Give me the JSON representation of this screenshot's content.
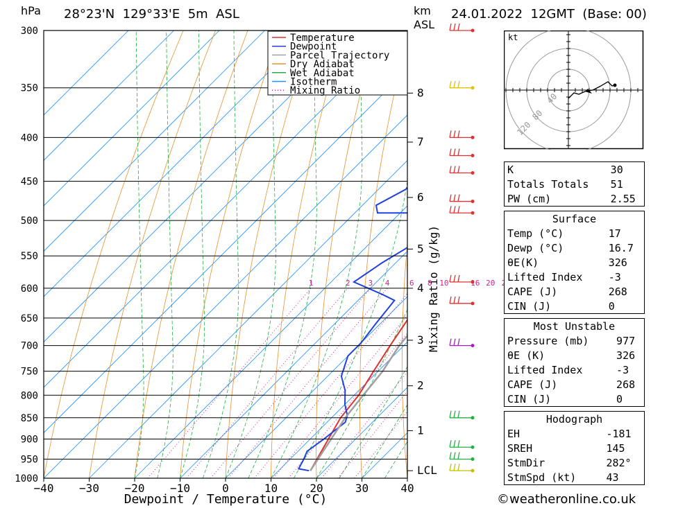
{
  "header": {
    "pressure_unit": "hPa",
    "location": "28°23'N  129°33'E  5m  ASL",
    "height_unit": "km",
    "height_unit2": "ASL",
    "datetime": "24.01.2022  12GMT  (Base: 00)"
  },
  "chart_data": {
    "type": "skew-t",
    "xlabel": "Dewpoint / Temperature (°C)",
    "ylabel_right": "Mixing Ratio (g/kg)",
    "x_ticks": [
      "-40",
      "-30",
      "-20",
      "-10",
      "0",
      "10",
      "20",
      "30",
      "40"
    ],
    "x_range": [
      -40,
      40
    ],
    "pressure_levels": [
      300,
      350,
      400,
      450,
      500,
      550,
      600,
      650,
      700,
      750,
      800,
      850,
      900,
      950,
      1000
    ],
    "height_ticks": [
      {
        "km": "8",
        "p": 355
      },
      {
        "km": "7",
        "p": 405
      },
      {
        "km": "6",
        "p": 470
      },
      {
        "km": "5",
        "p": 540
      },
      {
        "km": "4",
        "p": 600
      },
      {
        "km": "3",
        "p": 690
      },
      {
        "km": "2",
        "p": 780
      },
      {
        "km": "1",
        "p": 880
      },
      {
        "km": "LCL",
        "p": 980
      }
    ],
    "mixing_ratio_labels": [
      "1",
      "2",
      "3",
      "4",
      "6",
      "8",
      "10",
      "16",
      "20",
      "25"
    ],
    "legend": [
      "Temperature",
      "Dewpoint",
      "Parcel Trajectory",
      "Dry Adiabat",
      "Wet Adiabat",
      "Isotherm",
      "Mixing Ratio"
    ],
    "series": [
      {
        "name": "Temperature",
        "color": "#e03030",
        "points": [
          [
            17,
            980
          ],
          [
            14,
            900
          ],
          [
            12,
            850
          ],
          [
            11,
            800
          ],
          [
            9,
            750
          ],
          [
            7,
            700
          ],
          [
            5,
            650
          ],
          [
            3,
            610
          ],
          [
            5,
            600
          ],
          [
            3,
            570
          ],
          [
            0,
            530
          ],
          [
            -5,
            500
          ],
          [
            -3,
            480
          ],
          [
            -5,
            460
          ],
          [
            -7,
            440
          ],
          [
            -4,
            425
          ],
          [
            -3,
            410
          ],
          [
            -5,
            395
          ],
          [
            -7,
            370
          ]
        ]
      },
      {
        "name": "Dewpoint",
        "color": "#2040e0",
        "points": [
          [
            16.7,
            980
          ],
          [
            14,
            975
          ],
          [
            13,
            950
          ],
          [
            12,
            930
          ],
          [
            13,
            900
          ],
          [
            14,
            860
          ],
          [
            13,
            845
          ],
          [
            10,
            820
          ],
          [
            7,
            790
          ],
          [
            3,
            760
          ],
          [
            0,
            720
          ],
          [
            0,
            695
          ],
          [
            -1,
            660
          ],
          [
            -2,
            620
          ],
          [
            -6,
            610
          ],
          [
            -15,
            590
          ],
          [
            -13,
            560
          ],
          [
            -10,
            530
          ],
          [
            -7,
            505
          ],
          [
            -11,
            490
          ],
          [
            -25,
            490
          ],
          [
            -27,
            480
          ],
          [
            -24,
            460
          ],
          [
            -24,
            450
          ],
          [
            -24,
            400
          ],
          [
            -24,
            360
          ],
          [
            -24,
            310
          ],
          [
            -24,
            300
          ]
        ]
      },
      {
        "name": "Parcel Trajectory",
        "color": "#a0a0a0",
        "points": [
          [
            17,
            980
          ],
          [
            13,
            850
          ],
          [
            12,
            800
          ],
          [
            11,
            750
          ],
          [
            9,
            700
          ],
          [
            8,
            650
          ],
          [
            6,
            600
          ],
          [
            2,
            550
          ],
          [
            -2,
            500
          ],
          [
            -6,
            450
          ],
          [
            -10,
            400
          ],
          [
            -15,
            350
          ],
          [
            -20,
            310
          ],
          [
            -22,
            300
          ]
        ]
      }
    ],
    "wind_barbs": [
      {
        "p": 300,
        "color": "#e03030"
      },
      {
        "p": 350,
        "color": "#e0c000"
      },
      {
        "p": 400,
        "color": "#e03030"
      },
      {
        "p": 420,
        "color": "#e03030"
      },
      {
        "p": 440,
        "color": "#e03030"
      },
      {
        "p": 475,
        "color": "#e03030"
      },
      {
        "p": 490,
        "color": "#e03030"
      },
      {
        "p": 590,
        "color": "#e03030"
      },
      {
        "p": 625,
        "color": "#e03030"
      },
      {
        "p": 700,
        "color": "#a020c0"
      },
      {
        "p": 850,
        "color": "#20b040"
      },
      {
        "p": 920,
        "color": "#20b040"
      },
      {
        "p": 950,
        "color": "#20b040"
      },
      {
        "p": 980,
        "color": "#c0c000"
      }
    ],
    "hodograph": {
      "unit": "kt",
      "rings": [
        "40",
        "80",
        "120"
      ]
    }
  },
  "stability": {
    "rows": [
      {
        "label": "K",
        "value": "30"
      },
      {
        "label": "Totals Totals",
        "value": "51"
      },
      {
        "label": "PW (cm)",
        "value": "2.55"
      }
    ]
  },
  "surface": {
    "title": "Surface",
    "rows": [
      {
        "label": "Temp (°C)",
        "value": "17"
      },
      {
        "label": "Dewp (°C)",
        "value": "16.7"
      },
      {
        "label": "θE(K)",
        "value": "326"
      },
      {
        "label": "Lifted Index",
        "value": "-3"
      },
      {
        "label": "CAPE (J)",
        "value": "268"
      },
      {
        "label": "CIN (J)",
        "value": "0"
      }
    ]
  },
  "most_unstable": {
    "title": "Most Unstable",
    "rows": [
      {
        "label": "Pressure (mb)",
        "value": "977"
      },
      {
        "label": "θE (K)",
        "value": "326"
      },
      {
        "label": "Lifted Index",
        "value": "-3"
      },
      {
        "label": "CAPE (J)",
        "value": "268"
      },
      {
        "label": "CIN (J)",
        "value": "0"
      }
    ]
  },
  "hodograph_table": {
    "title": "Hodograph",
    "rows": [
      {
        "label": "EH",
        "value": "-181"
      },
      {
        "label": "SREH",
        "value": "145"
      },
      {
        "label": "StmDir",
        "value": "282°"
      },
      {
        "label": "StmSpd (kt)",
        "value": "43"
      }
    ]
  },
  "footer": {
    "credit": "©weatheronline.co.uk"
  }
}
